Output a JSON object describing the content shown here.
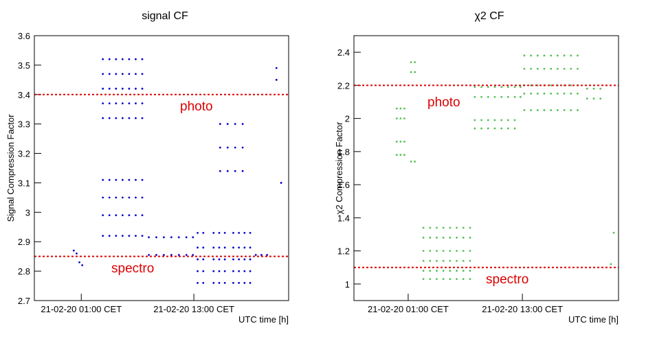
{
  "chart_data": [
    {
      "type": "scatter",
      "title": "signal CF",
      "xlabel": "UTC time [h]",
      "ylabel": "Signal Compression Factor",
      "color": "#0000cc",
      "xlim": [
        -4,
        23.1
      ],
      "ylim": [
        2.7,
        3.6
      ],
      "xticks": [
        {
          "value": 1,
          "label": "21-02-20 01:00 CET"
        },
        {
          "value": 13,
          "label": "21-02-20 13:00 CET"
        }
      ],
      "yticks": [
        2.7,
        2.8,
        2.9,
        3,
        3.1,
        3.2,
        3.3,
        3.4,
        3.5,
        3.6
      ],
      "lines": [
        {
          "value": 3.4,
          "color": "#dd0000"
        },
        {
          "value": 2.85,
          "color": "#dd0000"
        }
      ],
      "annotations": [
        {
          "text": "photo",
          "color": "#dd0000"
        },
        {
          "text": "spectro",
          "color": "#dd0000"
        }
      ],
      "x": [
        0.2,
        0.5,
        0.8,
        1.1,
        3.3,
        3.3,
        3.3,
        3.3,
        3.3,
        4,
        4,
        4,
        4,
        4,
        4.7,
        4.7,
        4.7,
        4.7,
        4.7,
        5.4,
        5.4,
        5.4,
        5.4,
        5.4,
        6.1,
        6.1,
        6.1,
        6.1,
        6.1,
        6.8,
        6.8,
        6.8,
        6.8,
        6.8,
        7.5,
        7.5,
        7.5,
        7.5,
        7.5,
        3.3,
        3.3,
        3.3,
        3.3,
        4,
        4,
        4,
        4,
        4.7,
        4.7,
        4.7,
        4.7,
        5.4,
        5.4,
        5.4,
        5.4,
        6.1,
        6.1,
        6.1,
        6.1,
        6.8,
        6.8,
        6.8,
        6.8,
        7.5,
        7.5,
        7.5,
        7.5,
        8.2,
        8.2,
        9,
        9,
        9.8,
        9.8,
        10.6,
        10.6,
        11.4,
        11.4,
        12.2,
        12.2,
        12.9,
        12.9,
        13.4,
        13.4,
        13.4,
        13.4,
        13.4,
        14,
        14,
        14,
        14,
        14,
        15.1,
        15.1,
        15.1,
        15.1,
        15.1,
        15.7,
        15.7,
        15.7,
        15.7,
        15.7,
        16.3,
        16.3,
        16.3,
        16.3,
        16.3,
        17.2,
        17.2,
        17.2,
        17.2,
        17.2,
        17.8,
        17.8,
        17.8,
        17.8,
        17.8,
        18.4,
        18.4,
        18.4,
        18.4,
        18.4,
        19,
        19,
        19,
        19,
        19,
        15.8,
        15.8,
        15.8,
        16.6,
        16.6,
        16.6,
        17.4,
        17.4,
        17.4,
        18.2,
        18.2,
        18.2,
        19.6,
        20.2,
        20.8,
        21.8,
        21.8,
        22.3
      ],
      "values": [
        2.87,
        2.86,
        2.83,
        2.82,
        3.52,
        3.47,
        3.42,
        3.37,
        3.32,
        3.52,
        3.47,
        3.42,
        3.37,
        3.32,
        3.52,
        3.47,
        3.42,
        3.37,
        3.32,
        3.52,
        3.47,
        3.42,
        3.37,
        3.32,
        3.52,
        3.47,
        3.42,
        3.37,
        3.32,
        3.52,
        3.47,
        3.42,
        3.37,
        3.32,
        3.52,
        3.47,
        3.42,
        3.37,
        3.32,
        3.11,
        3.05,
        2.99,
        2.92,
        3.11,
        3.05,
        2.99,
        2.92,
        3.11,
        3.05,
        2.99,
        2.92,
        3.11,
        3.05,
        2.99,
        2.92,
        3.11,
        3.05,
        2.99,
        2.92,
        3.11,
        3.05,
        2.99,
        2.92,
        3.11,
        3.05,
        2.99,
        2.92,
        2.915,
        2.855,
        2.915,
        2.855,
        2.915,
        2.855,
        2.915,
        2.855,
        2.915,
        2.855,
        2.915,
        2.855,
        2.915,
        2.855,
        2.93,
        2.88,
        2.84,
        2.8,
        2.76,
        2.93,
        2.88,
        2.84,
        2.8,
        2.76,
        2.93,
        2.88,
        2.84,
        2.8,
        2.76,
        2.93,
        2.88,
        2.84,
        2.8,
        2.76,
        2.93,
        2.88,
        2.84,
        2.8,
        2.76,
        2.93,
        2.88,
        2.84,
        2.8,
        2.76,
        2.93,
        2.88,
        2.84,
        2.8,
        2.76,
        2.93,
        2.88,
        2.84,
        2.8,
        2.76,
        2.93,
        2.88,
        2.84,
        2.8,
        2.76,
        3.3,
        3.22,
        3.14,
        3.3,
        3.22,
        3.14,
        3.3,
        3.22,
        3.14,
        3.3,
        3.22,
        3.14,
        2.855,
        2.855,
        2.855,
        3.49,
        3.45,
        3.1
      ]
    },
    {
      "type": "scatter",
      "title": "χ2 CF",
      "xlabel": "UTC time [h]",
      "ylabel": "χ2 Compression Factor",
      "color": "#55c055",
      "xlim": [
        -4.7,
        23.1
      ],
      "ylim": [
        0.9,
        2.5
      ],
      "xticks": [
        {
          "value": 1,
          "label": "21-02-20 01:00 CET"
        },
        {
          "value": 13,
          "label": "21-02-20 13:00 CET"
        }
      ],
      "yticks": [
        1,
        1.2,
        1.4,
        1.6,
        1.8,
        2,
        2.2,
        2.4
      ],
      "lines": [
        {
          "value": 2.2,
          "color": "#dd0000"
        },
        {
          "value": 1.1,
          "color": "#dd0000"
        }
      ],
      "annotations": [
        {
          "text": "photo",
          "color": "#dd0000"
        },
        {
          "text": "spectro",
          "color": "#dd0000"
        }
      ],
      "x": [
        -0.2,
        -0.2,
        -0.2,
        -0.2,
        0.2,
        0.2,
        0.2,
        0.2,
        0.6,
        0.6,
        0.6,
        0.6,
        1.3,
        1.3,
        1.3,
        1.7,
        1.7,
        1.7,
        2.6,
        2.6,
        2.6,
        2.6,
        2.6,
        2.6,
        3.3,
        3.3,
        3.3,
        3.3,
        3.3,
        3.3,
        4,
        4,
        4,
        4,
        4,
        4,
        4.7,
        4.7,
        4.7,
        4.7,
        4.7,
        4.7,
        5.4,
        5.4,
        5.4,
        5.4,
        5.4,
        5.4,
        6.1,
        6.1,
        6.1,
        6.1,
        6.1,
        6.1,
        6.8,
        6.8,
        6.8,
        6.8,
        6.8,
        6.8,
        7.5,
        7.5,
        7.5,
        7.5,
        7.5,
        7.5,
        8,
        8,
        8.7,
        8.7,
        9.4,
        9.4,
        10.1,
        10.1,
        10.8,
        10.8,
        11.5,
        11.5,
        12.2,
        12.2,
        12.8,
        12.8,
        8,
        8,
        8.7,
        8.7,
        9.4,
        9.4,
        10.1,
        10.1,
        10.8,
        10.8,
        11.5,
        11.5,
        12.2,
        12.2,
        13.2,
        13.2,
        13.2,
        13.2,
        13.2,
        13.9,
        13.9,
        13.9,
        13.9,
        13.9,
        14.6,
        14.6,
        14.6,
        14.6,
        14.6,
        15.3,
        15.3,
        15.3,
        15.3,
        15.3,
        16,
        16,
        16,
        16,
        16,
        16.7,
        16.7,
        16.7,
        16.7,
        16.7,
        17.4,
        17.4,
        17.4,
        17.4,
        17.4,
        18.1,
        18.1,
        18.1,
        18.1,
        18.1,
        18.8,
        18.8,
        18.8,
        18.8,
        18.8,
        19.8,
        19.8,
        20.5,
        20.5,
        21.2,
        21.2,
        22.6,
        22.3
      ],
      "values": [
        1.78,
        1.86,
        2,
        2.06,
        1.78,
        1.86,
        2,
        2.06,
        1.78,
        1.86,
        2,
        2.06,
        1.74,
        2.28,
        2.34,
        1.74,
        2.28,
        2.34,
        1.34,
        1.28,
        1.2,
        1.14,
        1.08,
        1.03,
        1.34,
        1.28,
        1.2,
        1.14,
        1.08,
        1.03,
        1.34,
        1.28,
        1.2,
        1.14,
        1.08,
        1.03,
        1.34,
        1.28,
        1.2,
        1.14,
        1.08,
        1.03,
        1.34,
        1.28,
        1.2,
        1.14,
        1.08,
        1.03,
        1.34,
        1.28,
        1.2,
        1.14,
        1.08,
        1.03,
        1.34,
        1.28,
        1.2,
        1.14,
        1.08,
        1.03,
        1.34,
        1.28,
        1.2,
        1.14,
        1.08,
        1.03,
        2.19,
        2.13,
        2.19,
        2.13,
        2.19,
        2.13,
        2.19,
        2.13,
        2.19,
        2.13,
        2.19,
        2.13,
        2.19,
        2.13,
        2.19,
        2.13,
        1.99,
        1.94,
        1.99,
        1.94,
        1.99,
        1.94,
        1.99,
        1.94,
        1.99,
        1.94,
        1.99,
        1.94,
        1.99,
        1.94,
        2.38,
        2.3,
        2.2,
        2.15,
        2.05,
        2.38,
        2.3,
        2.2,
        2.15,
        2.05,
        2.38,
        2.3,
        2.2,
        2.15,
        2.05,
        2.38,
        2.3,
        2.2,
        2.15,
        2.05,
        2.38,
        2.3,
        2.2,
        2.15,
        2.05,
        2.38,
        2.3,
        2.2,
        2.15,
        2.05,
        2.38,
        2.3,
        2.2,
        2.15,
        2.05,
        2.38,
        2.3,
        2.2,
        2.15,
        2.05,
        2.38,
        2.3,
        2.2,
        2.15,
        2.05,
        2.18,
        2.12,
        2.18,
        2.12,
        2.18,
        2.12,
        1.31,
        1.12
      ]
    }
  ]
}
